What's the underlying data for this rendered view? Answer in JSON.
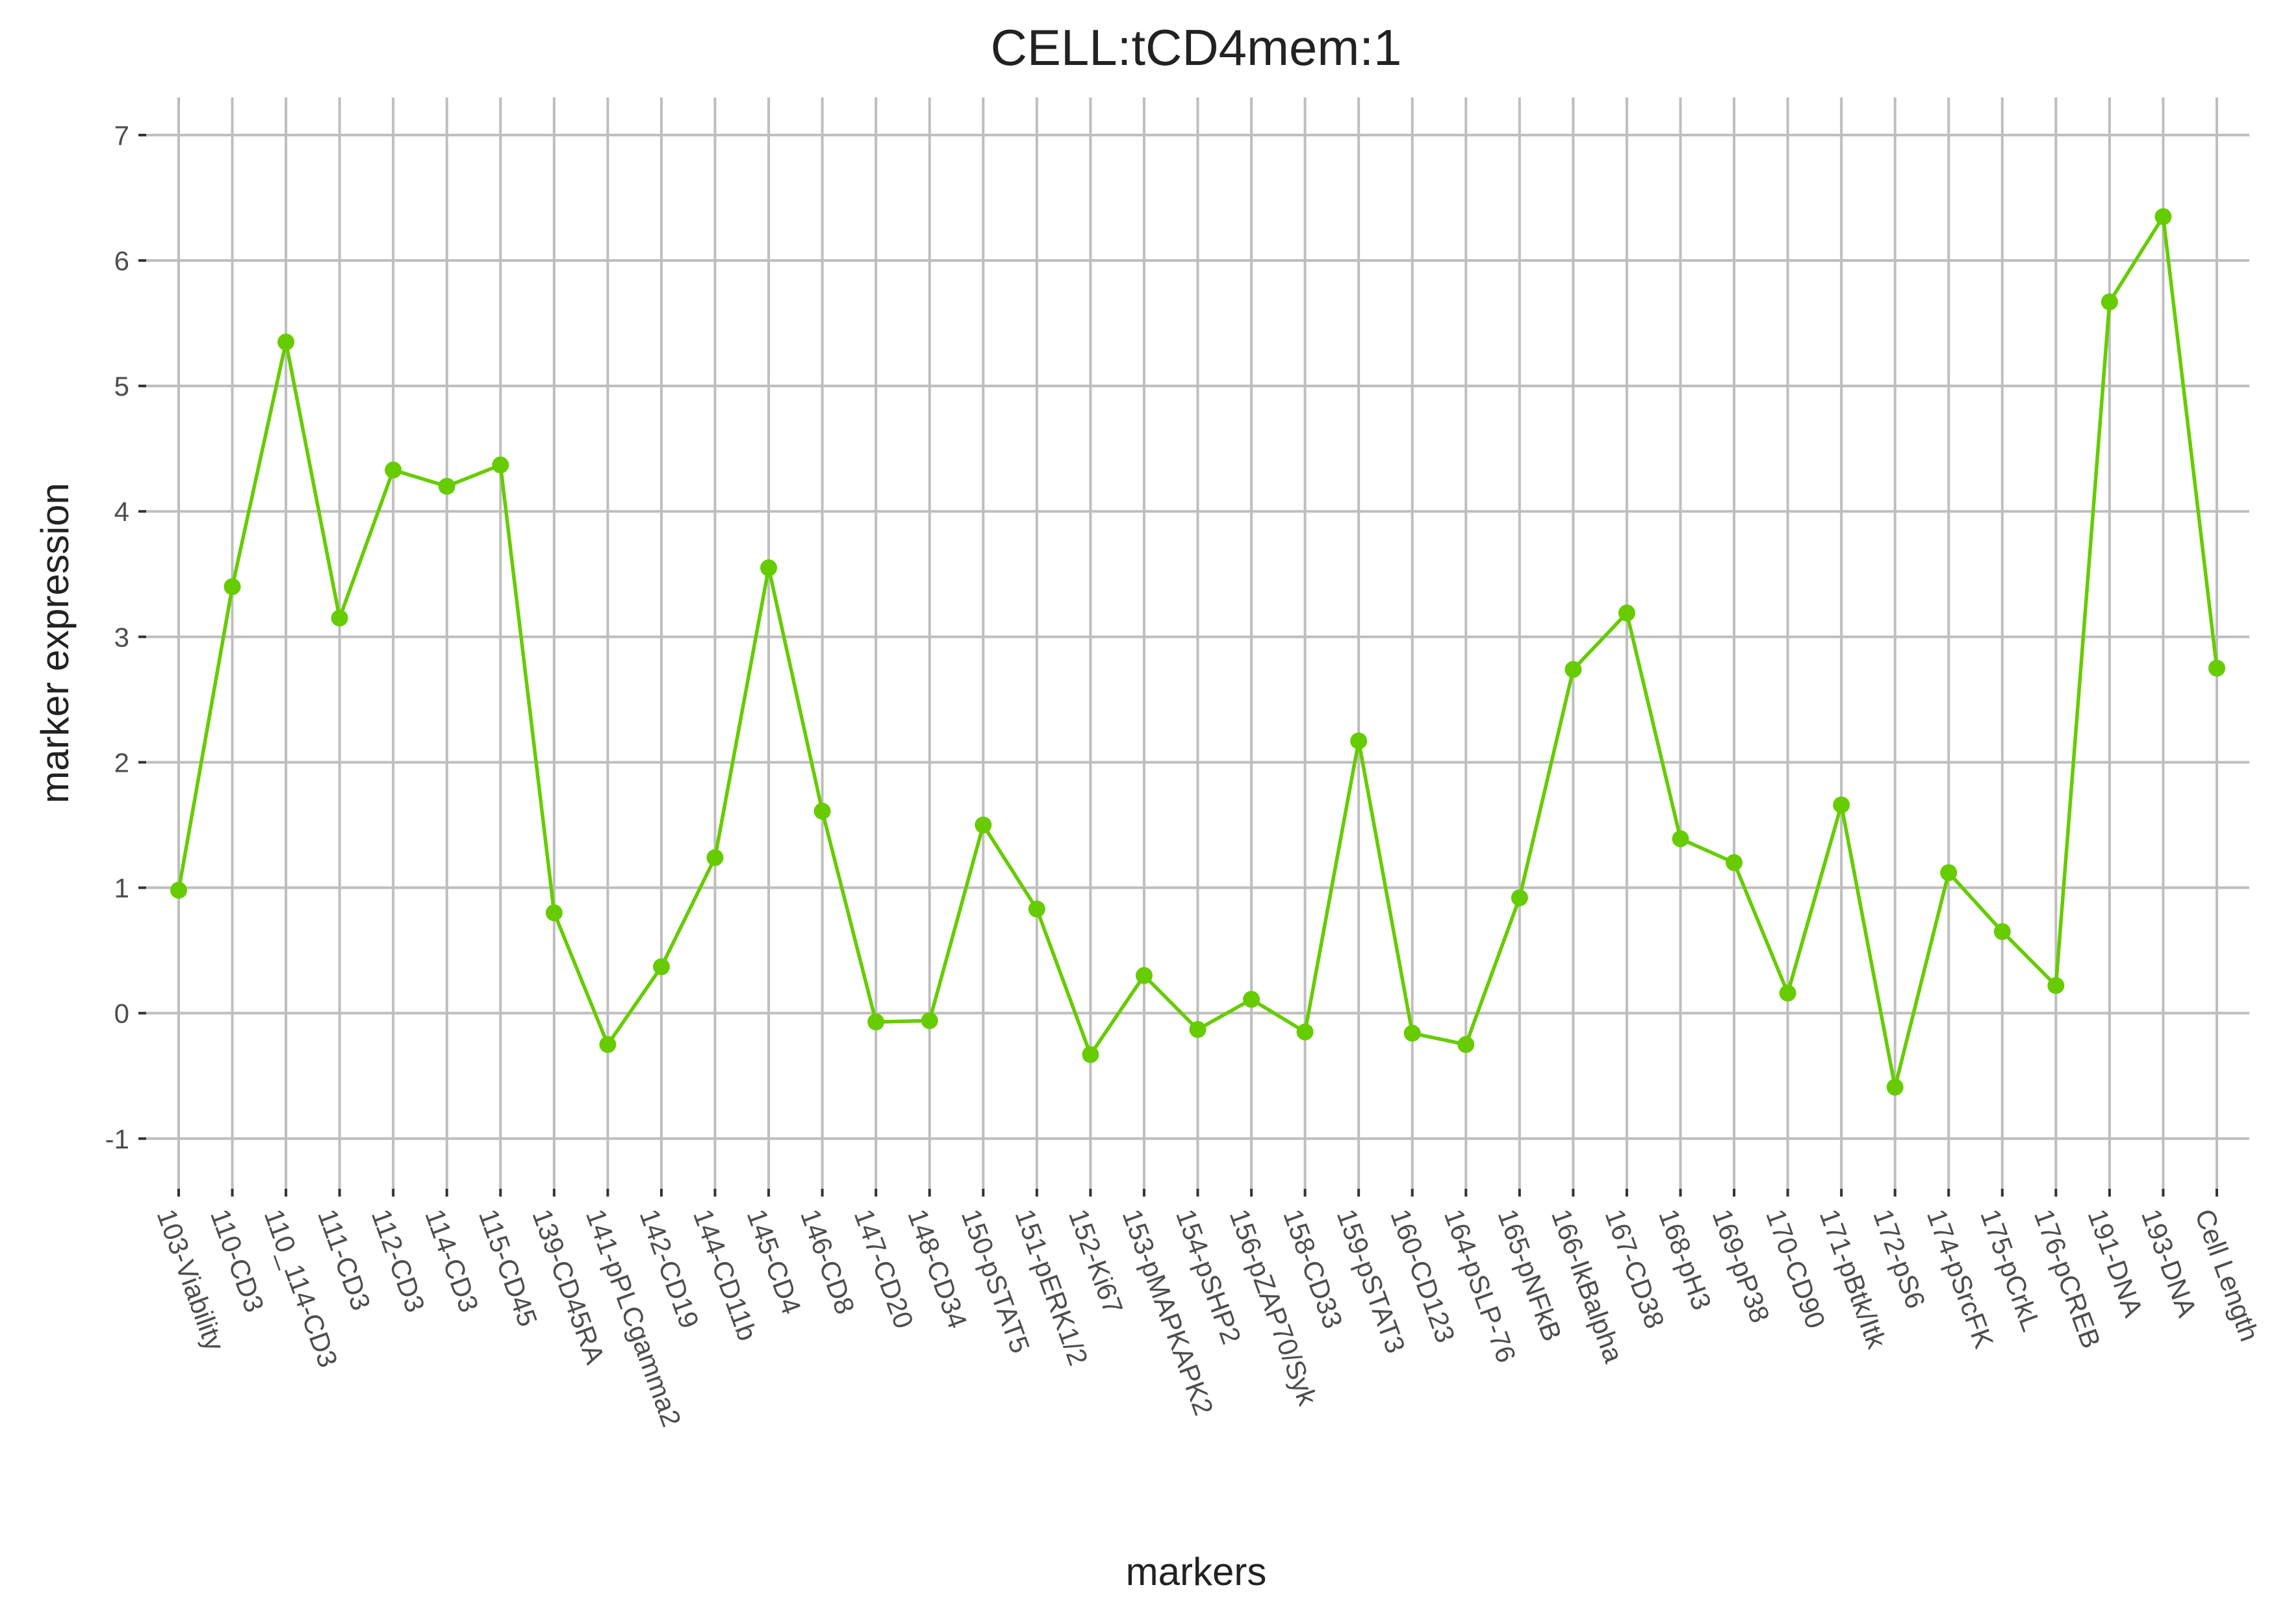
{
  "chart_data": {
    "type": "line",
    "title": "CELL:tCD4mem:1",
    "xlabel": "markers",
    "ylabel": "marker expression",
    "ylim": [
      -1.4,
      7.3
    ],
    "yticks": [
      -1,
      0,
      1,
      2,
      3,
      4,
      5,
      6,
      7
    ],
    "grid": true,
    "legend": "none",
    "series_color": "#66cc00",
    "grid_color": "#bebebe",
    "categories": [
      "103-Viability",
      "110-CD3",
      "110_114-CD3",
      "111-CD3",
      "112-CD3",
      "114-CD3",
      "115-CD45",
      "139-CD45RA",
      "141-pPLCgamma2",
      "142-CD19",
      "144-CD11b",
      "145-CD4",
      "146-CD8",
      "147-CD20",
      "148-CD34",
      "150-pSTAT5",
      "151-pERK1/2",
      "152-Ki67",
      "153-pMAPKAPK2",
      "154-pSHP2",
      "156-pZAP70/Syk",
      "158-CD33",
      "159-pSTAT3",
      "160-CD123",
      "164-pSLP-76",
      "165-pNFkB",
      "166-IkBalpha",
      "167-CD38",
      "168-pH3",
      "169-pP38",
      "170-CD90",
      "171-pBtk/Itk",
      "172-pS6",
      "174-pSrcFK",
      "175-pCrkL",
      "176-pCREB",
      "191-DNA",
      "193-DNA",
      "Cell Length"
    ],
    "values": [
      0.98,
      3.4,
      5.35,
      3.15,
      4.33,
      4.2,
      4.37,
      0.8,
      -0.25,
      0.37,
      1.24,
      3.55,
      1.61,
      -0.07,
      -0.06,
      1.5,
      0.83,
      -0.33,
      0.3,
      -0.13,
      0.11,
      -0.15,
      2.17,
      -0.16,
      -0.25,
      0.92,
      2.74,
      3.19,
      1.39,
      1.2,
      0.16,
      1.66,
      -0.59,
      1.12,
      0.65,
      0.22,
      5.67,
      6.35,
      2.75
    ]
  }
}
